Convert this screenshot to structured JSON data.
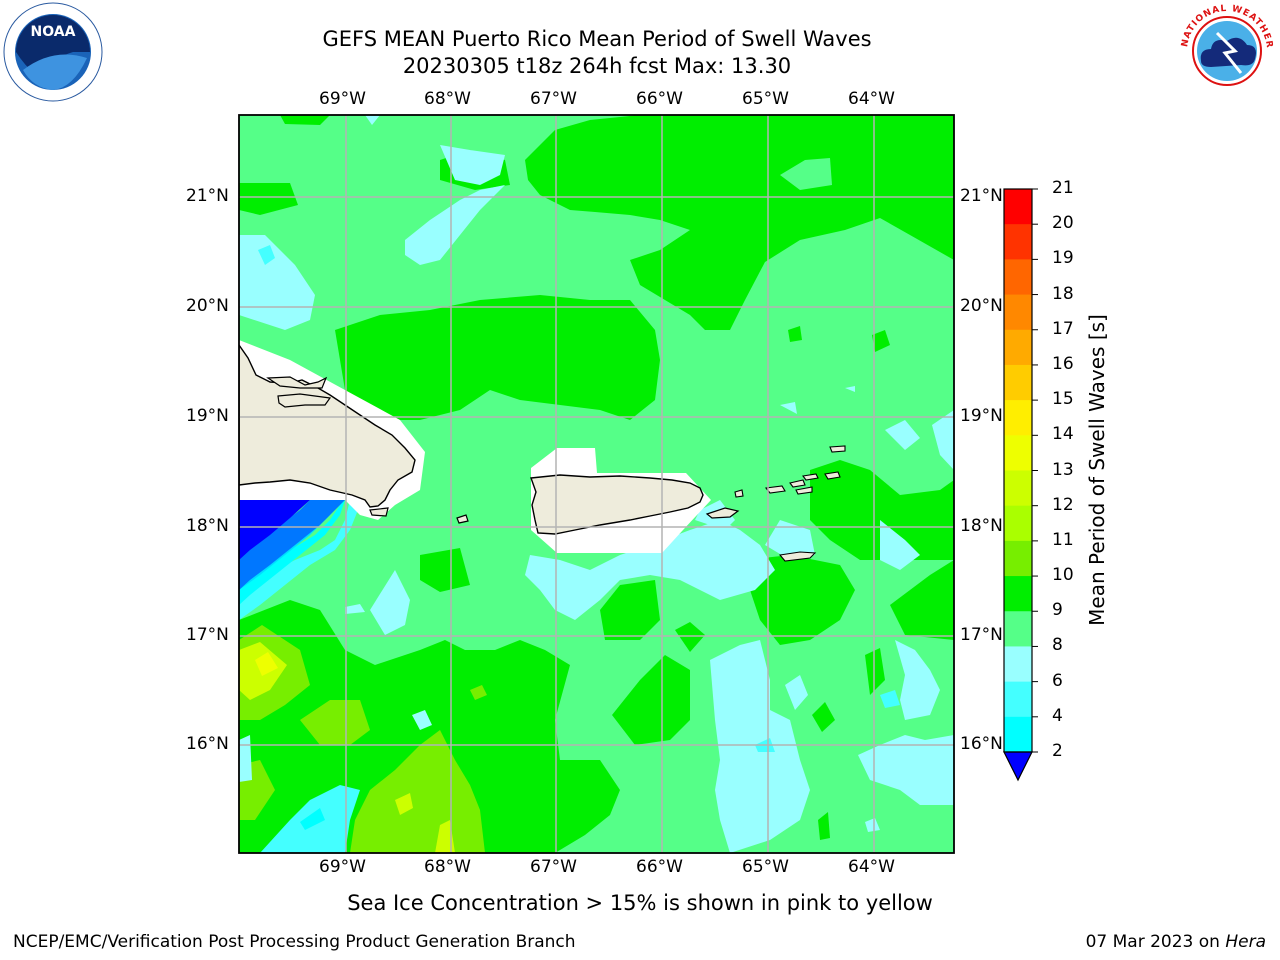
{
  "title": {
    "line1": "GEFS MEAN Puerto Rico Mean Period of Swell Waves",
    "line2": "20230305 t18z 264h fcst   Max: 13.30"
  },
  "map": {
    "lon_ticks": [
      "69°W",
      "68°W",
      "67°W",
      "66°W",
      "65°W",
      "64°W"
    ],
    "lat_ticks": [
      "21°N",
      "20°N",
      "19°N",
      "18°N",
      "17°N",
      "16°N"
    ],
    "extent": {
      "lon_min": -70.0,
      "lon_max": -63.3,
      "lat_min": 15.0,
      "lat_max": 21.75
    },
    "ocean_color": "#55ff88",
    "land_color": "#eeecdc"
  },
  "colorbar": {
    "label": "Mean Period of Swell Waves [s]",
    "ticks": [
      "21",
      "20",
      "19",
      "18",
      "17",
      "16",
      "15",
      "14",
      "13",
      "12",
      "11",
      "10",
      "9",
      "8",
      "6",
      "4",
      "2"
    ],
    "colors": [
      "#ff0000",
      "#ff3300",
      "#ff6600",
      "#ff8800",
      "#ffaa00",
      "#ffcc00",
      "#ffee00",
      "#eeff00",
      "#ccff00",
      "#aaff00",
      "#77ee00",
      "#00ee00",
      "#55ff88",
      "#99ffff",
      "#44ffff",
      "#00ffff",
      "#00ddff",
      "#0077ff",
      "#0000ff"
    ]
  },
  "footer": {
    "note": "Sea Ice Concentration > 15% is shown in pink to yellow",
    "credit": "NCEP/EMC/Verification Post Processing Product Generation Branch",
    "date": "07 Mar 2023 on",
    "machine": "Hera"
  },
  "logos": {
    "left": "NOAA",
    "right": "NATIONAL WEATHER SERVICE"
  }
}
